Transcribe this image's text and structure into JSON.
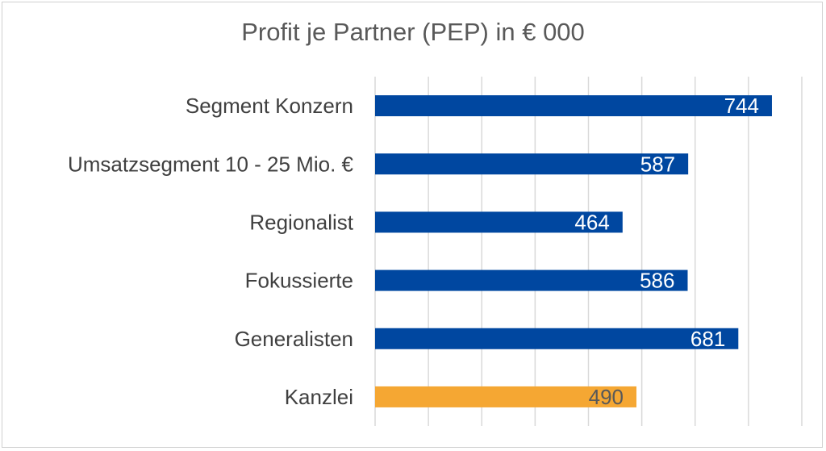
{
  "chart_data": {
    "type": "bar",
    "orientation": "horizontal",
    "title": "Profit je Partner (PEP) in € 000",
    "categories": [
      "Segment Konzern",
      "Umsatzsegment 10 - 25 Mio. €",
      "Regionalist",
      "Fokussierte",
      "Generalisten",
      "Kanzlei"
    ],
    "values": [
      744,
      587,
      464,
      586,
      681,
      490
    ],
    "bar_colors": [
      "#0047a0",
      "#0047a0",
      "#0047a0",
      "#0047a0",
      "#0047a0",
      "#f5a733"
    ],
    "label_colors": [
      "#ffffff",
      "#ffffff",
      "#ffffff",
      "#ffffff",
      "#ffffff",
      "#595959"
    ],
    "xlim": [
      0,
      800
    ],
    "grid": true,
    "xlabel": "",
    "ylabel": ""
  }
}
